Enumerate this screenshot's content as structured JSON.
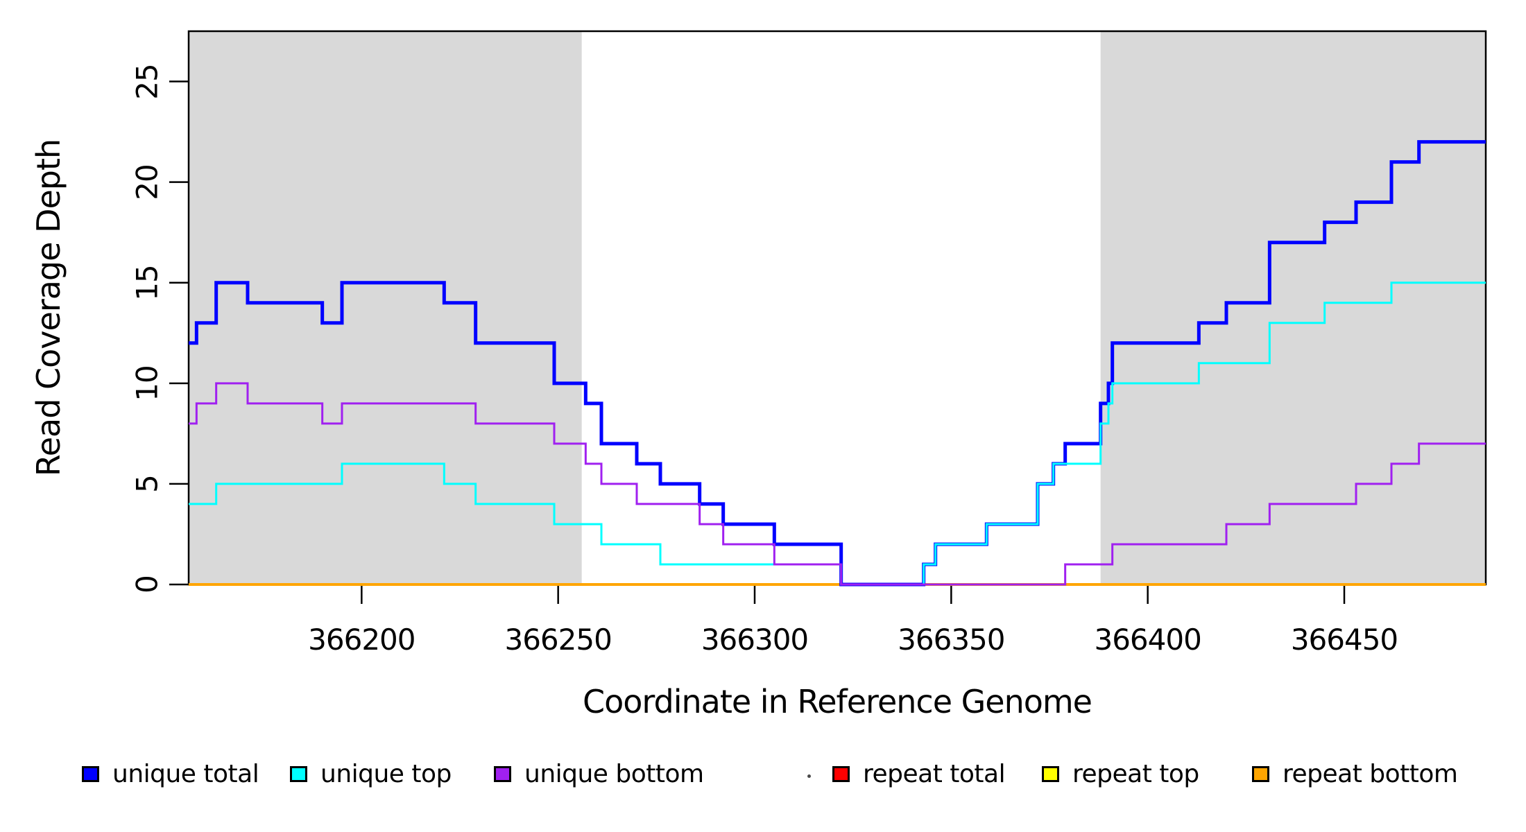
{
  "chart_data": {
    "type": "line",
    "subtype": "step-post",
    "title": "",
    "xlabel": "Coordinate in Reference Genome",
    "ylabel": "Read Coverage Depth",
    "xlim": [
      366156,
      366486
    ],
    "ylim": [
      0,
      27.5
    ],
    "grid": false,
    "x_ticks": [
      366200,
      366250,
      366300,
      366350,
      366400,
      366450
    ],
    "x_tick_labels": [
      "366200",
      "366250",
      "366300",
      "366350",
      "366400",
      "366450"
    ],
    "y_ticks": [
      0,
      5,
      10,
      15,
      20,
      25
    ],
    "y_tick_labels": [
      "0",
      "5",
      "10",
      "15",
      "20",
      "25"
    ],
    "highlight_regions": [
      {
        "x0": 366156,
        "x1": 366256,
        "color": "#D9D9D9"
      },
      {
        "x0": 366388,
        "x1": 366486,
        "color": "#D9D9D9"
      }
    ],
    "series": [
      {
        "name": "repeat total",
        "color": "#FF0000",
        "width": 3.5,
        "points": [
          [
            366156,
            0
          ],
          [
            366486,
            0
          ]
        ]
      },
      {
        "name": "repeat top",
        "color": "#FFFF00",
        "width": 3,
        "points": [
          [
            366156,
            0
          ],
          [
            366486,
            0
          ]
        ]
      },
      {
        "name": "repeat bottom",
        "color": "#FFA500",
        "width": 4,
        "points": [
          [
            366156,
            0
          ],
          [
            366486,
            0
          ]
        ]
      },
      {
        "name": "unique total",
        "color": "#0000FF",
        "width": 5,
        "points": [
          [
            366156,
            12
          ],
          [
            366158,
            13
          ],
          [
            366163,
            15
          ],
          [
            366171,
            14
          ],
          [
            366190,
            13
          ],
          [
            366195,
            15
          ],
          [
            366221,
            14
          ],
          [
            366229,
            12
          ],
          [
            366249,
            10
          ],
          [
            366257,
            9
          ],
          [
            366261,
            7
          ],
          [
            366270,
            6
          ],
          [
            366276,
            5
          ],
          [
            366286,
            4
          ],
          [
            366292,
            3
          ],
          [
            366305,
            2
          ],
          [
            366322,
            0
          ],
          [
            366343,
            1
          ],
          [
            366346,
            2
          ],
          [
            366359,
            3
          ],
          [
            366372,
            5
          ],
          [
            366376,
            6
          ],
          [
            366379,
            7
          ],
          [
            366388,
            9
          ],
          [
            366390,
            10
          ],
          [
            366391,
            12
          ],
          [
            366413,
            13
          ],
          [
            366420,
            14
          ],
          [
            366431,
            17
          ],
          [
            366445,
            18
          ],
          [
            366453,
            19
          ],
          [
            366462,
            21
          ],
          [
            366469,
            22
          ],
          [
            366486,
            22
          ]
        ]
      },
      {
        "name": "unique top",
        "color": "#00FFFF",
        "width": 3,
        "points": [
          [
            366156,
            4
          ],
          [
            366163,
            5
          ],
          [
            366195,
            6
          ],
          [
            366221,
            5
          ],
          [
            366229,
            4
          ],
          [
            366249,
            3
          ],
          [
            366261,
            2
          ],
          [
            366276,
            1
          ],
          [
            366322,
            0
          ],
          [
            366343,
            1
          ],
          [
            366346,
            2
          ],
          [
            366359,
            3
          ],
          [
            366372,
            5
          ],
          [
            366376,
            6
          ],
          [
            366388,
            8
          ],
          [
            366390,
            9
          ],
          [
            366391,
            10
          ],
          [
            366413,
            11
          ],
          [
            366431,
            13
          ],
          [
            366445,
            14
          ],
          [
            366462,
            15
          ],
          [
            366486,
            15
          ]
        ]
      },
      {
        "name": "unique bottom",
        "color": "#A020F0",
        "width": 3,
        "points": [
          [
            366156,
            8
          ],
          [
            366158,
            9
          ],
          [
            366163,
            10
          ],
          [
            366171,
            9
          ],
          [
            366190,
            8
          ],
          [
            366195,
            9
          ],
          [
            366229,
            8
          ],
          [
            366249,
            7
          ],
          [
            366257,
            6
          ],
          [
            366261,
            5
          ],
          [
            366270,
            4
          ],
          [
            366286,
            3
          ],
          [
            366292,
            2
          ],
          [
            366305,
            1
          ],
          [
            366322,
            0
          ],
          [
            366379,
            1
          ],
          [
            366391,
            2
          ],
          [
            366420,
            3
          ],
          [
            366431,
            4
          ],
          [
            366453,
            5
          ],
          [
            366462,
            6
          ],
          [
            366469,
            7
          ],
          [
            366486,
            7
          ]
        ]
      }
    ],
    "legend": {
      "position": "bottom",
      "items": [
        {
          "label": "unique total",
          "color": "#0000FF"
        },
        {
          "label": "unique top",
          "color": "#00FFFF"
        },
        {
          "label": "unique bottom",
          "color": "#A020F0"
        },
        {
          "label": "repeat total",
          "color": "#FF0000"
        },
        {
          "label": "repeat top",
          "color": "#FFFF00"
        },
        {
          "label": "repeat bottom",
          "color": "#FFA500"
        }
      ]
    }
  },
  "layout_colors": {
    "plot_background": "#FFFFFF",
    "band_gray": "#D9D9D9",
    "axis_black": "#000000"
  }
}
